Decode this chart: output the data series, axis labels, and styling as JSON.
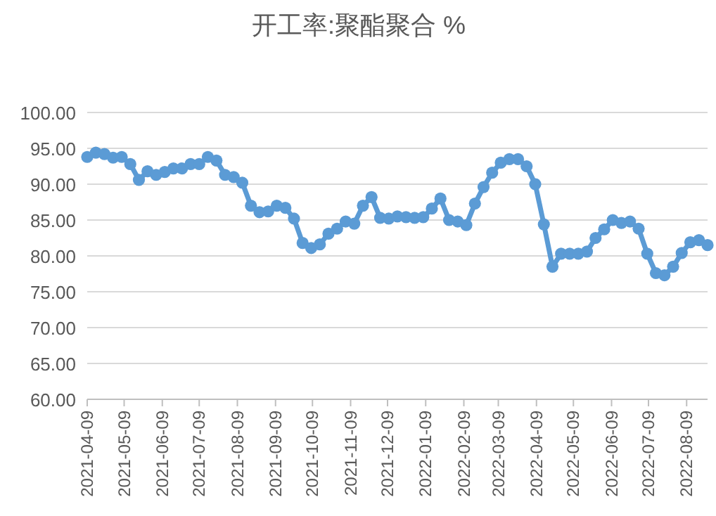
{
  "chart_data": {
    "type": "line",
    "title": "开工率:聚酯聚合 %",
    "x": [
      "2021-04-09",
      "2021-04-16",
      "2021-04-23",
      "2021-04-30",
      "2021-05-07",
      "2021-05-14",
      "2021-05-21",
      "2021-05-28",
      "2021-06-04",
      "2021-06-11",
      "2021-06-18",
      "2021-06-25",
      "2021-07-02",
      "2021-07-09",
      "2021-07-16",
      "2021-07-23",
      "2021-07-30",
      "2021-08-06",
      "2021-08-13",
      "2021-08-20",
      "2021-08-27",
      "2021-09-03",
      "2021-09-10",
      "2021-09-17",
      "2021-09-24",
      "2021-10-01",
      "2021-10-08",
      "2021-10-15",
      "2021-10-22",
      "2021-10-29",
      "2021-11-05",
      "2021-11-12",
      "2021-11-19",
      "2021-11-26",
      "2021-12-03",
      "2021-12-10",
      "2021-12-17",
      "2021-12-24",
      "2021-12-31",
      "2022-01-07",
      "2022-01-14",
      "2022-01-21",
      "2022-01-28",
      "2022-02-04",
      "2022-02-11",
      "2022-02-18",
      "2022-02-25",
      "2022-03-04",
      "2022-03-11",
      "2022-03-18",
      "2022-03-25",
      "2022-04-01",
      "2022-04-08",
      "2022-04-15",
      "2022-04-22",
      "2022-04-29",
      "2022-05-06",
      "2022-05-13",
      "2022-05-20",
      "2022-05-27",
      "2022-06-03",
      "2022-06-10",
      "2022-06-17",
      "2022-06-24",
      "2022-07-01",
      "2022-07-08",
      "2022-07-15",
      "2022-07-22",
      "2022-07-29",
      "2022-08-05",
      "2022-08-12",
      "2022-08-19",
      "2022-08-26"
    ],
    "series": [
      {
        "color": "#5b9bd5",
        "values": [
          93.8,
          94.4,
          94.2,
          93.7,
          93.8,
          92.8,
          90.6,
          91.8,
          91.3,
          91.7,
          92.2,
          92.2,
          92.8,
          92.8,
          93.8,
          93.3,
          91.3,
          91.0,
          90.2,
          87.0,
          86.1,
          86.2,
          87.0,
          86.7,
          85.2,
          81.8,
          81.1,
          81.6,
          83.1,
          83.8,
          84.8,
          84.5,
          87.0,
          88.2,
          85.3,
          85.2,
          85.5,
          85.4,
          85.3,
          85.4,
          86.6,
          88.0,
          85.0,
          84.8,
          84.3,
          87.3,
          89.6,
          91.6,
          93.0,
          93.5,
          93.5,
          92.5,
          90.0,
          84.4,
          78.5,
          80.3,
          80.3,
          80.3,
          80.6,
          82.5,
          83.7,
          85.0,
          84.6,
          84.8,
          83.8,
          80.3,
          77.6,
          77.3,
          78.5,
          80.4,
          81.9,
          82.2,
          81.5
        ]
      }
    ],
    "xlim": [
      "2021-04-09",
      "2022-08-26"
    ],
    "xticks": [
      "2021-04-09",
      "2021-05-09",
      "2021-06-09",
      "2021-07-09",
      "2021-08-09",
      "2021-09-09",
      "2021-10-09",
      "2021-11-09",
      "2021-12-09",
      "2022-01-09",
      "2022-02-09",
      "2022-03-09",
      "2022-04-09",
      "2022-05-09",
      "2022-06-09",
      "2022-07-09",
      "2022-08-09"
    ],
    "ylim": [
      60,
      100
    ],
    "yticks": [
      {
        "value": 60,
        "label": "60.00"
      },
      {
        "value": 65,
        "label": "65.00"
      },
      {
        "value": 70,
        "label": "70.00"
      },
      {
        "value": 75,
        "label": "75.00"
      },
      {
        "value": 80,
        "label": "80.00"
      },
      {
        "value": 85,
        "label": "85.00"
      },
      {
        "value": 90,
        "label": "90.00"
      },
      {
        "value": 95,
        "label": "95.00"
      },
      {
        "value": 100,
        "label": "100.00"
      }
    ],
    "grid": "y",
    "marker": "circle",
    "line_style": "solid"
  }
}
